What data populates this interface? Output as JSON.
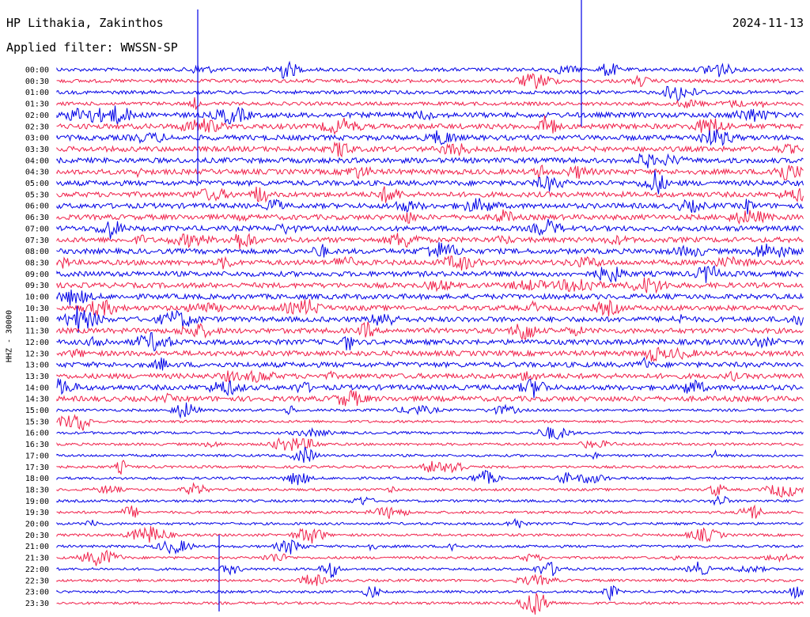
{
  "header": {
    "station": "HP Lithakia, Zakinthos",
    "filter": "Applied filter: WWSSN-SP",
    "date": "2024-11-13"
  },
  "chart_data": {
    "type": "line",
    "ylabel": "HHZ - 30000",
    "row_labels": [
      "00:00",
      "00:30",
      "01:00",
      "01:30",
      "02:00",
      "02:30",
      "03:00",
      "03:30",
      "04:00",
      "04:30",
      "05:00",
      "05:30",
      "06:00",
      "06:30",
      "07:00",
      "07:30",
      "08:00",
      "08:30",
      "09:00",
      "09:30",
      "10:00",
      "10:30",
      "11:00",
      "11:30",
      "12:00",
      "12:30",
      "13:00",
      "13:30",
      "14:00",
      "14:30",
      "15:00",
      "15:30",
      "16:00",
      "16:30",
      "17:00",
      "17:30",
      "18:00",
      "18:30",
      "19:00",
      "19:30",
      "20:00",
      "20:30",
      "21:00",
      "21:30",
      "22:00",
      "22:30",
      "23:00",
      "23:30"
    ],
    "series_colors": [
      "#0000e6",
      "#f0204a"
    ],
    "grid": false
  }
}
